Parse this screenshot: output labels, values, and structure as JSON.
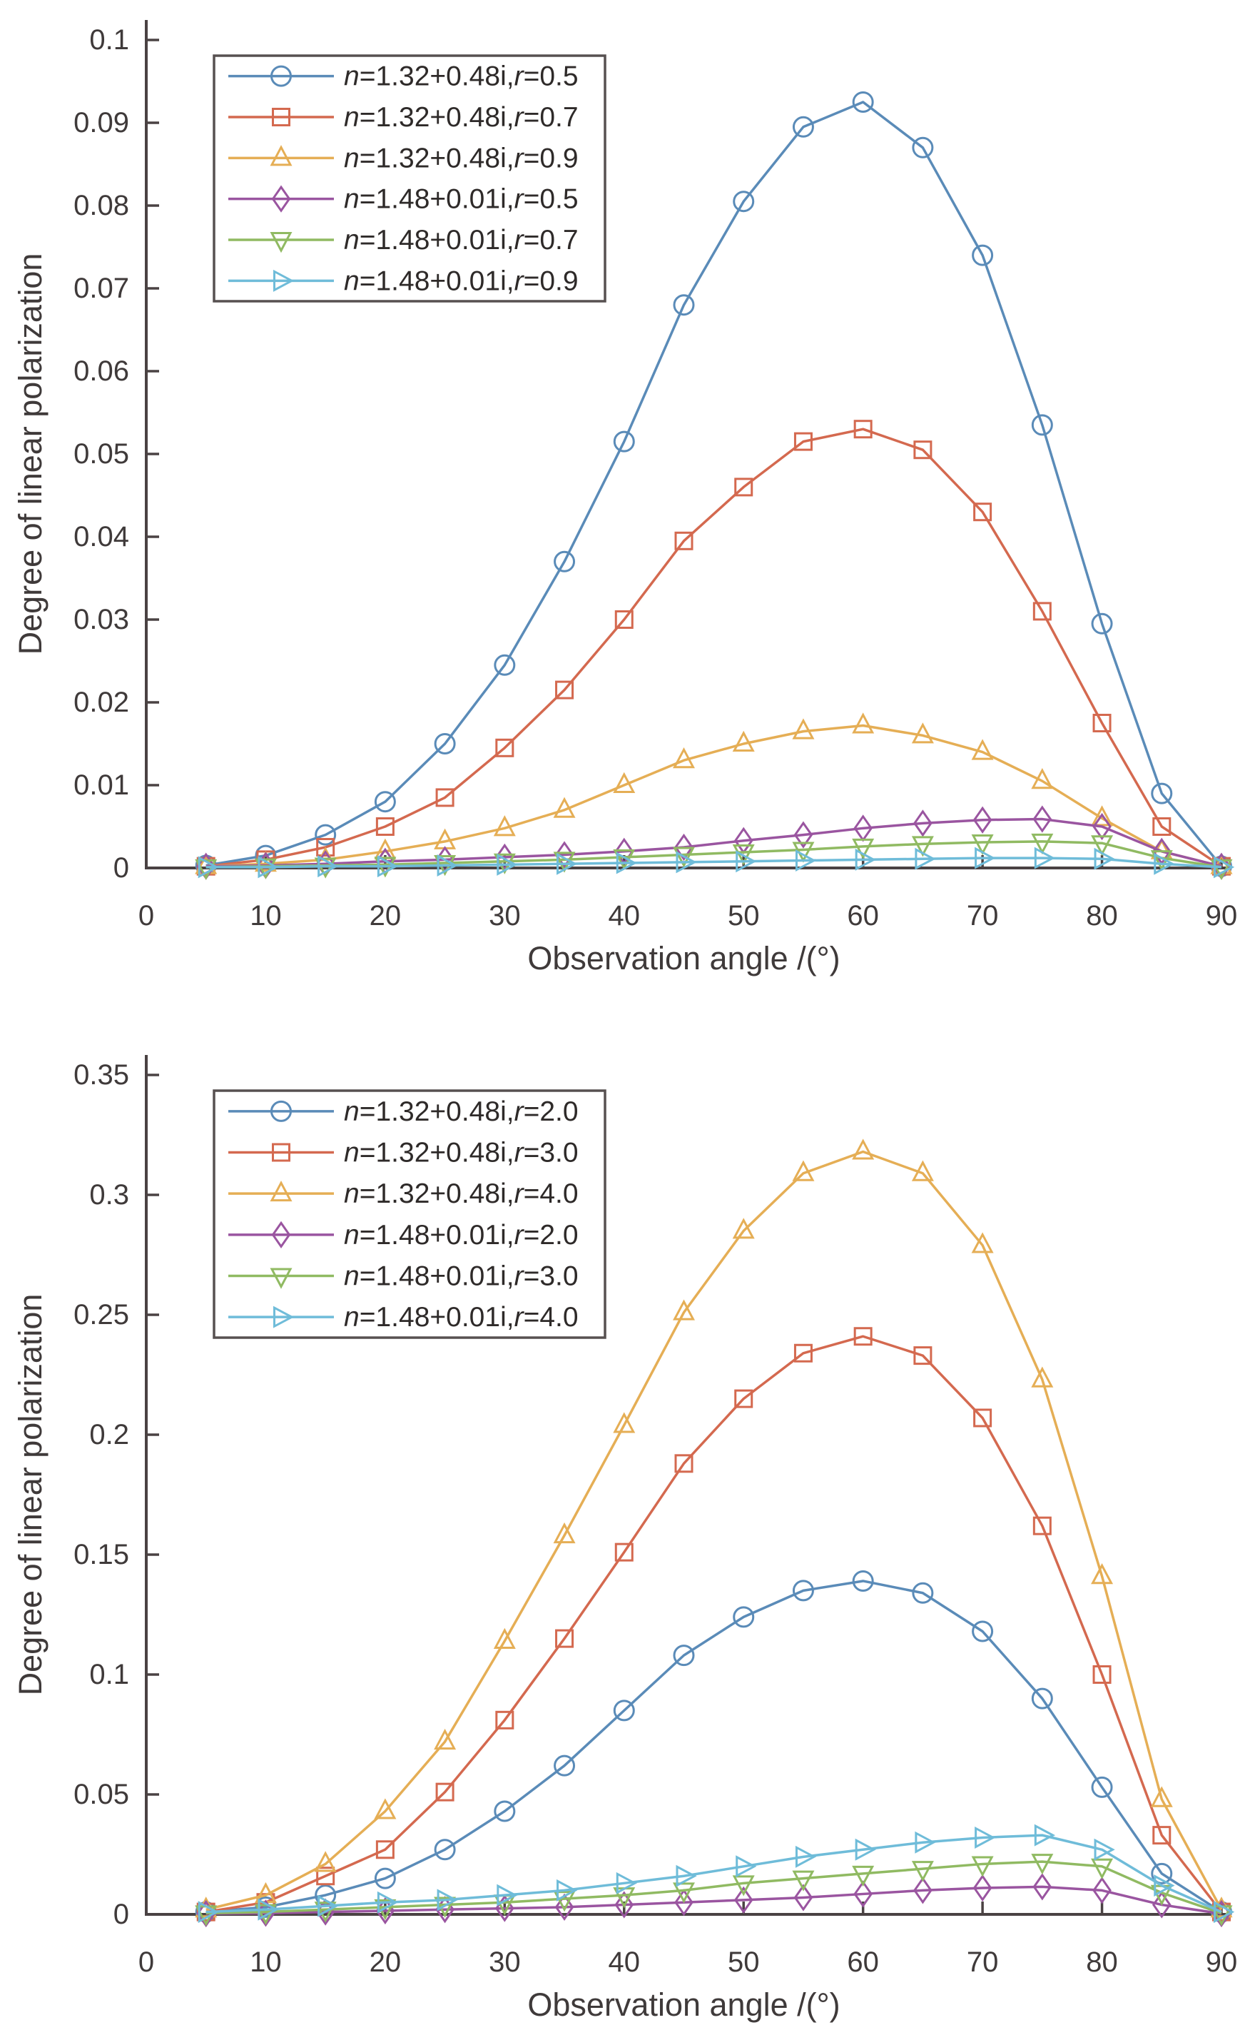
{
  "figure": {
    "background": "#ffffff",
    "axis_color": "#4a4243",
    "text_color": "#3f3a3a",
    "legend_border_color": "#575050"
  },
  "chart_data": [
    {
      "type": "line",
      "title": "",
      "xlabel": "Observation angle /(°)",
      "ylabel": "Degree of linear polarization",
      "xlim": [
        0,
        90
      ],
      "ylim": [
        0,
        0.1
      ],
      "grid": false,
      "legend_position": "upper-left",
      "xticks": [
        0,
        10,
        20,
        30,
        40,
        50,
        60,
        70,
        80,
        90
      ],
      "xtick_labels": [
        "0",
        "10",
        "20",
        "30",
        "40",
        "50",
        "60",
        "70",
        "80",
        "90"
      ],
      "yticks": [
        0,
        0.01,
        0.02,
        0.03,
        0.04,
        0.05,
        0.06,
        0.07,
        0.08,
        0.09,
        0.1
      ],
      "ytick_labels": [
        "0",
        "0.01",
        "0.02",
        "0.03",
        "0.04",
        "0.05",
        "0.06",
        "0.07",
        "0.08",
        "0.09",
        "0.1"
      ],
      "x": [
        5,
        10,
        15,
        20,
        25,
        30,
        35,
        40,
        45,
        50,
        55,
        60,
        65,
        70,
        75,
        80,
        85,
        90
      ],
      "series": [
        {
          "name": "n=1.32+0.48i,r=0.5",
          "n": "1.32+0.48i",
          "r": "0.5",
          "color": "#5a8bb8",
          "marker": "circle",
          "values": [
            0.0003,
            0.0015,
            0.004,
            0.008,
            0.015,
            0.0245,
            0.037,
            0.0515,
            0.068,
            0.0805,
            0.0895,
            0.0925,
            0.087,
            0.074,
            0.0535,
            0.0295,
            0.009,
            0.0002
          ]
        },
        {
          "name": "n=1.32+0.48i,r=0.7",
          "n": "1.32+0.48i",
          "r": "0.7",
          "color": "#d4694f",
          "marker": "square",
          "values": [
            0.0002,
            0.001,
            0.0025,
            0.005,
            0.0085,
            0.0145,
            0.0215,
            0.03,
            0.0395,
            0.046,
            0.0515,
            0.053,
            0.0505,
            0.043,
            0.031,
            0.0175,
            0.005,
            0.0002
          ]
        },
        {
          "name": "n=1.32+0.48i,r=0.9",
          "n": "1.32+0.48i",
          "r": "0.9",
          "color": "#e5ae55",
          "marker": "triangle-up",
          "values": [
            0.0002,
            0.0005,
            0.001,
            0.002,
            0.0032,
            0.0048,
            0.007,
            0.01,
            0.013,
            0.015,
            0.0165,
            0.0172,
            0.016,
            0.014,
            0.0105,
            0.006,
            0.002,
            0.0002
          ]
        },
        {
          "name": "n=1.48+0.01i,r=0.5",
          "n": "1.48+0.01i",
          "r": "0.5",
          "color": "#9a55a0",
          "marker": "diamond",
          "values": [
            0.0002,
            0.0003,
            0.0005,
            0.0008,
            0.001,
            0.0013,
            0.0016,
            0.002,
            0.0025,
            0.0033,
            0.004,
            0.0048,
            0.0054,
            0.0058,
            0.0059,
            0.005,
            0.002,
            0.0002
          ]
        },
        {
          "name": "n=1.48+0.01i,r=0.7",
          "n": "1.48+0.01i",
          "r": "0.7",
          "color": "#90ba62",
          "marker": "triangle-down",
          "values": [
            0.0001,
            0.0002,
            0.0003,
            0.0004,
            0.0006,
            0.0008,
            0.001,
            0.0013,
            0.0016,
            0.0019,
            0.0022,
            0.0026,
            0.0029,
            0.0031,
            0.0032,
            0.003,
            0.0012,
            0.0001
          ]
        },
        {
          "name": "n=1.48+0.01i,r=0.9",
          "n": "1.48+0.01i",
          "r": "0.9",
          "color": "#6fbcd9",
          "marker": "triangle-right",
          "values": [
            0.0001,
            0.0001,
            0.0002,
            0.0002,
            0.0003,
            0.0004,
            0.0005,
            0.0006,
            0.0007,
            0.0008,
            0.0009,
            0.001,
            0.0011,
            0.0012,
            0.0012,
            0.0011,
            0.0005,
            0.0001
          ]
        }
      ]
    },
    {
      "type": "line",
      "title": "",
      "xlabel": "Observation angle /(°)",
      "ylabel": "Degree of linear polarization",
      "xlim": [
        0,
        90
      ],
      "ylim": [
        0,
        0.35
      ],
      "grid": false,
      "legend_position": "upper-left",
      "xticks": [
        0,
        10,
        20,
        30,
        40,
        50,
        60,
        70,
        80,
        90
      ],
      "xtick_labels": [
        "0",
        "10",
        "20",
        "30",
        "40",
        "50",
        "60",
        "70",
        "80",
        "90"
      ],
      "yticks": [
        0,
        0.05,
        0.1,
        0.15,
        0.2,
        0.25,
        0.3,
        0.35
      ],
      "ytick_labels": [
        "0",
        "0.05",
        "0.1",
        "0.15",
        "0.2",
        "0.25",
        "0.3",
        "0.35"
      ],
      "x": [
        5,
        10,
        15,
        20,
        25,
        30,
        35,
        40,
        45,
        50,
        55,
        60,
        65,
        70,
        75,
        80,
        85,
        90
      ],
      "series": [
        {
          "name": "n=1.32+0.48i,r=2.0",
          "n": "1.32+0.48i",
          "r": "2.0",
          "color": "#5a8bb8",
          "marker": "circle",
          "values": [
            0.001,
            0.003,
            0.008,
            0.015,
            0.027,
            0.043,
            0.062,
            0.085,
            0.108,
            0.124,
            0.135,
            0.139,
            0.134,
            0.118,
            0.09,
            0.053,
            0.017,
            0.001
          ]
        },
        {
          "name": "n=1.32+0.48i,r=3.0",
          "n": "1.32+0.48i",
          "r": "3.0",
          "color": "#d4694f",
          "marker": "square",
          "values": [
            0.001,
            0.005,
            0.016,
            0.027,
            0.051,
            0.081,
            0.115,
            0.151,
            0.188,
            0.215,
            0.234,
            0.241,
            0.233,
            0.207,
            0.162,
            0.1,
            0.033,
            0.001
          ]
        },
        {
          "name": "n=1.32+0.48i,r=4.0",
          "n": "1.32+0.48i",
          "r": "4.0",
          "color": "#e5ae55",
          "marker": "triangle-up",
          "values": [
            0.002,
            0.008,
            0.021,
            0.043,
            0.072,
            0.114,
            0.158,
            0.204,
            0.251,
            0.285,
            0.309,
            0.318,
            0.309,
            0.279,
            0.223,
            0.141,
            0.048,
            0.002
          ]
        },
        {
          "name": "n=1.48+0.01i,r=2.0",
          "n": "1.48+0.01i",
          "r": "2.0",
          "color": "#9a55a0",
          "marker": "diamond",
          "values": [
            0.0003,
            0.0005,
            0.001,
            0.0015,
            0.002,
            0.0025,
            0.003,
            0.004,
            0.005,
            0.006,
            0.007,
            0.0085,
            0.01,
            0.011,
            0.0115,
            0.01,
            0.004,
            0.0003
          ]
        },
        {
          "name": "n=1.48+0.01i,r=3.0",
          "n": "1.48+0.01i",
          "r": "3.0",
          "color": "#90ba62",
          "marker": "triangle-down",
          "values": [
            0.0005,
            0.001,
            0.002,
            0.003,
            0.004,
            0.005,
            0.0065,
            0.008,
            0.01,
            0.013,
            0.015,
            0.017,
            0.019,
            0.021,
            0.022,
            0.02,
            0.009,
            0.0005
          ]
        },
        {
          "name": "n=1.48+0.01i,r=4.0",
          "n": "1.48+0.01i",
          "r": "4.0",
          "color": "#6fbcd9",
          "marker": "triangle-right",
          "values": [
            0.001,
            0.002,
            0.0035,
            0.005,
            0.006,
            0.008,
            0.01,
            0.013,
            0.016,
            0.02,
            0.024,
            0.027,
            0.03,
            0.032,
            0.033,
            0.027,
            0.012,
            0.001
          ]
        }
      ]
    }
  ]
}
